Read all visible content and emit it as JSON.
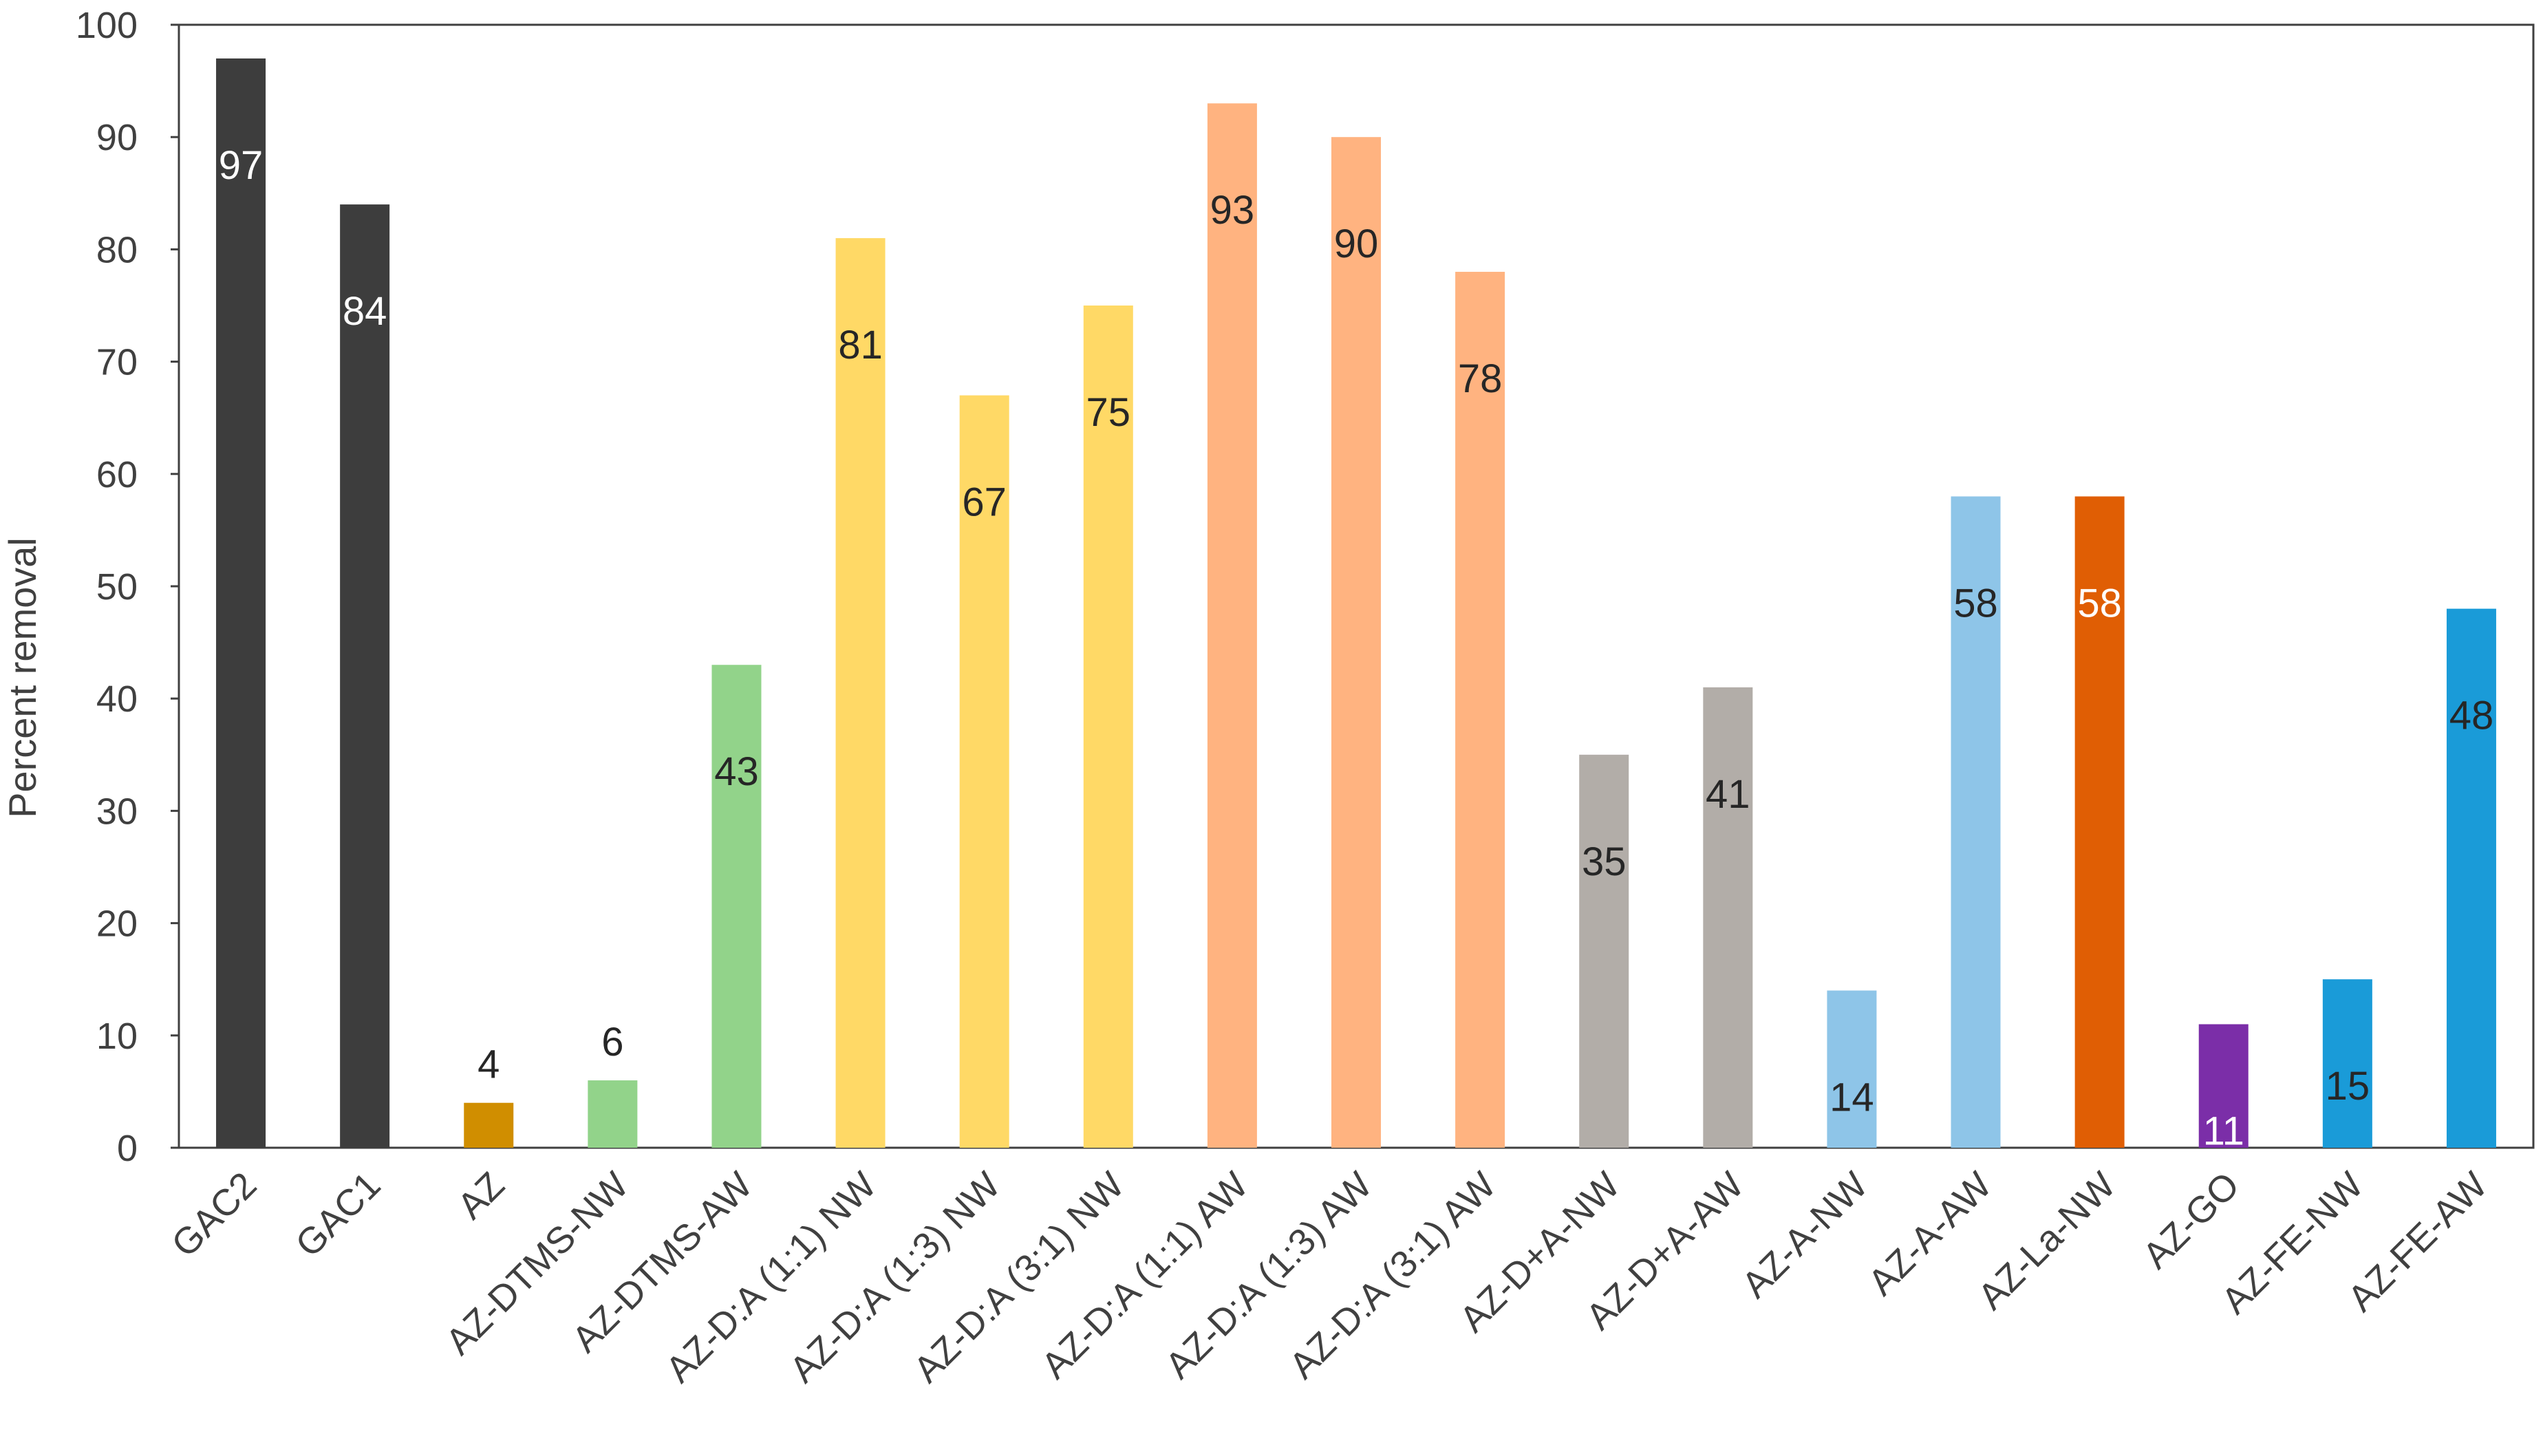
{
  "chart_data": {
    "type": "bar",
    "title": "",
    "xlabel": "",
    "ylabel": "Percent removal",
    "ylim": [
      0,
      100
    ],
    "yticks": [
      0,
      10,
      20,
      30,
      40,
      50,
      60,
      70,
      80,
      90,
      100
    ],
    "grid": false,
    "legend": "none",
    "categories": [
      "GAC2",
      "GAC1",
      "AZ",
      "AZ-DTMS-NW",
      "AZ-DTMS-AW",
      "AZ-D:A (1:1) NW",
      "AZ-D:A (1:3) NW",
      "AZ-D:A (3:1) NW",
      "AZ-D:A (1:1) AW",
      "AZ-D:A (1:3) AW",
      "AZ-D:A (3:1) AW",
      "AZ-D+A-NW",
      "AZ-D+A-AW",
      "AZ-A-NW",
      "AZ-A-AW",
      "AZ-La-NW",
      "AZ-GO",
      "AZ-FE-NW",
      "AZ-FE-AW"
    ],
    "values": [
      97,
      84,
      4,
      6,
      43,
      81,
      67,
      75,
      93,
      90,
      78,
      35,
      41,
      14,
      58,
      58,
      11,
      15,
      48
    ],
    "data_labels": [
      "97",
      "84",
      "4",
      "6",
      "43",
      "81",
      "67",
      "75",
      "93",
      "90",
      "78",
      "35",
      "41",
      "14",
      "58",
      "58",
      "11",
      "15",
      "48"
    ],
    "bar_colors": [
      "#3d3d3d",
      "#3d3d3d",
      "#d08e00",
      "#92d38a",
      "#92d38a",
      "#ffd966",
      "#ffd966",
      "#ffd966",
      "#ffb380",
      "#ffb380",
      "#ffb380",
      "#b2ada8",
      "#b2ada8",
      "#8ec5e8",
      "#8ec5e8",
      "#e05e04",
      "#7b2ea8",
      "#1a9bd8",
      "#1a9bd8"
    ],
    "label_colors": [
      "#ffffff",
      "#ffffff",
      "#262626",
      "#262626",
      "#262626",
      "#262626",
      "#262626",
      "#262626",
      "#262626",
      "#262626",
      "#262626",
      "#262626",
      "#262626",
      "#262626",
      "#262626",
      "#ffffff",
      "#ffffff",
      "#262626",
      "#262626"
    ],
    "label_position": [
      "inside",
      "inside",
      "above",
      "above",
      "inside",
      "inside",
      "inside",
      "inside",
      "inside",
      "inside",
      "inside",
      "inside",
      "inside",
      "inside",
      "inside",
      "inside",
      "inside",
      "inside",
      "inside"
    ]
  }
}
